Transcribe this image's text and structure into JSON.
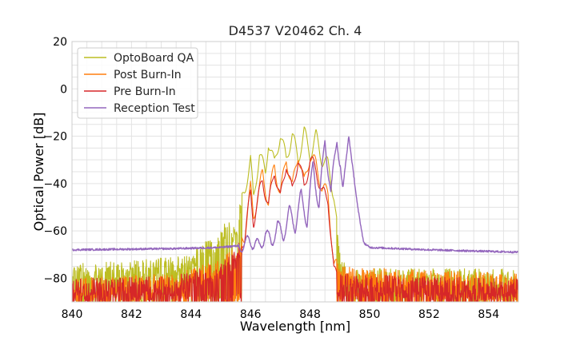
{
  "chart_data": {
    "type": "line",
    "title": "D4537 V20462 Ch. 4",
    "xlabel": "Wavelength [nm]",
    "ylabel": "Optical Power [dB]",
    "xlim": [
      840,
      855
    ],
    "ylim": [
      -90,
      20
    ],
    "xticks": [
      "840",
      "842",
      "844",
      "846",
      "848",
      "850",
      "852",
      "854"
    ],
    "yticks": [
      "20",
      "0",
      "−20",
      "−40",
      "−60",
      "−80"
    ],
    "grid": true,
    "legend_position": "top-left",
    "noise_floor": {
      "range": [
        840,
        855
      ],
      "level_min": -90,
      "level_max": -74
    },
    "series": [
      {
        "name": "OptoBoard QA",
        "color": "#bcbd22",
        "x": [
          840,
          843.5,
          844,
          844.3,
          844.6,
          844.8,
          845,
          845.3,
          845.5,
          845.6,
          845.8,
          846,
          846.1,
          846.3,
          846.5,
          846.6,
          846.8,
          847.0,
          847.2,
          847.4,
          847.6,
          847.8,
          848.0,
          848.2,
          848.4,
          848.6,
          848.8,
          849.0,
          849.3,
          855
        ],
        "y": [
          -74,
          -71,
          -70,
          -66,
          -63,
          -67,
          -59,
          -54,
          -60,
          -52,
          -43,
          -30,
          -47,
          -27,
          -36,
          -22,
          -32,
          -19,
          -30,
          -19,
          -30,
          -18,
          -28,
          -20,
          -30,
          -32,
          -45,
          -70,
          -76,
          -76
        ]
      },
      {
        "name": "Post Burn-In",
        "color": "#ff7f0e",
        "x": [
          840,
          843.5,
          845,
          845.5,
          845.8,
          846,
          846.1,
          846.4,
          846.6,
          846.8,
          847.0,
          847.2,
          847.4,
          847.6,
          847.8,
          848.0,
          848.2,
          848.4,
          848.6,
          848.8,
          855
        ],
        "y": [
          -80,
          -78,
          -72,
          -67,
          -62,
          -42,
          -54,
          -36,
          -48,
          -32,
          -45,
          -29,
          -42,
          -27,
          -40,
          -28,
          -32,
          -42,
          -44,
          -75,
          -78
        ]
      },
      {
        "name": "Pre Burn-In",
        "color": "#d62728",
        "x": [
          840,
          843.5,
          845,
          845.5,
          845.8,
          846,
          846.1,
          846.4,
          846.6,
          846.8,
          847.0,
          847.2,
          847.4,
          847.6,
          847.8,
          848.0,
          848.2,
          848.4,
          848.6,
          848.8,
          855
        ],
        "y": [
          -80,
          -79,
          -73,
          -68,
          -63,
          -44,
          -56,
          -38,
          -50,
          -34,
          -47,
          -31,
          -44,
          -29,
          -42,
          -30,
          -34,
          -44,
          -46,
          -78,
          -80
        ]
      },
      {
        "name": "Reception Test",
        "color": "#9467bd",
        "x": [
          840,
          843.5,
          845.0,
          845.8,
          846.0,
          846.3,
          846.5,
          846.7,
          846.9,
          847.1,
          847.3,
          847.5,
          847.7,
          847.9,
          848.1,
          848.3,
          848.5,
          848.7,
          848.9,
          849.1,
          849.3,
          849.5,
          849.6,
          849.8,
          850.0,
          852,
          855
        ],
        "y": [
          -68,
          -67.5,
          -67,
          -66,
          -64,
          -67,
          -61,
          -65,
          -58,
          -62,
          -52,
          -58,
          -45,
          -56,
          -32,
          -50,
          -21,
          -45,
          -20,
          -42,
          -20,
          -40,
          -50,
          -65,
          -67,
          -68,
          -69
        ]
      }
    ]
  }
}
